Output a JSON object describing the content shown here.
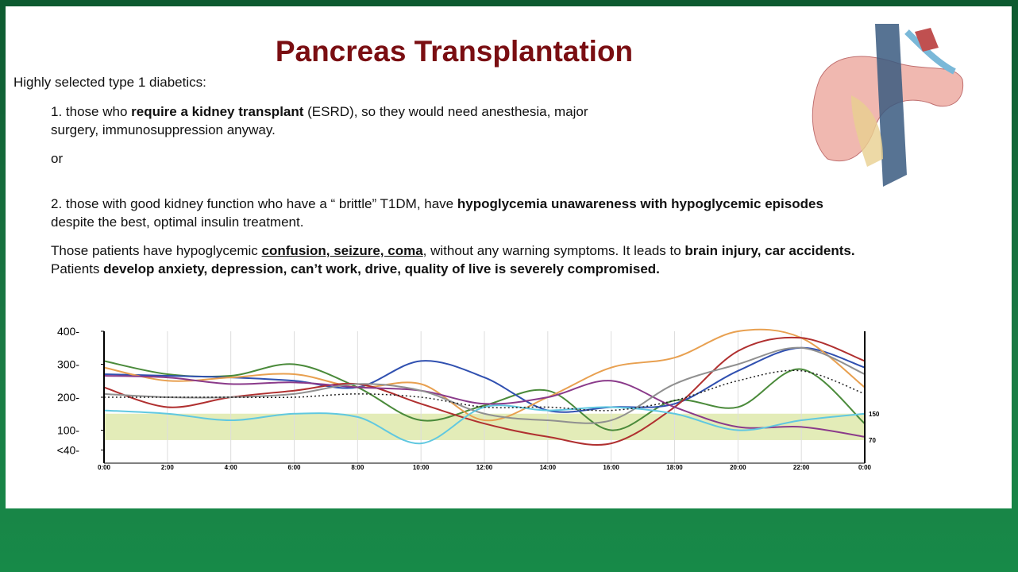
{
  "header": {
    "title": "Pancreas Transplantation"
  },
  "body": {
    "intro": "Highly selected type 1 diabetics:",
    "item1": [
      {
        "text": "1.  those who "
      },
      {
        "text": "require a kidney transplant",
        "style": "bold"
      },
      {
        "text": " (ESRD), so they would need anesthesia, major surgery, immunosuppression anyway."
      }
    ],
    "or": "or",
    "item2": [
      {
        "text": "2.  those with good kidney function who have a “ brittle” T1DM, have "
      },
      {
        "text": "hypoglycemia unawareness with hypoglycemic episodes",
        "style": "bold"
      },
      {
        "text": " despite the best, optimal insulin treatment."
      }
    ],
    "paragraph": [
      {
        "text": "Those patients have hypoglycemic "
      },
      {
        "text": "confusion, seizure, coma",
        "style": "bold-underline"
      },
      {
        "text": ", without any warning symptoms. It leads to "
      },
      {
        "text": "brain injury, car accidents.",
        "style": "bold"
      },
      {
        "text": " Patients "
      },
      {
        "text": "develop anxiety, depression, can’t work, drive, quality of live is severely compromised.",
        "style": "bold"
      }
    ]
  },
  "chart_data": {
    "type": "line",
    "categories": [
      "0:00",
      "2:00",
      "4:00",
      "6:00",
      "8:00",
      "10:00",
      "12:00",
      "14:00",
      "16:00",
      "18:00",
      "20:00",
      "22:00",
      "0:00"
    ],
    "ylim": [
      0,
      400
    ],
    "yticks": [
      {
        "value": 400,
        "label": "400-"
      },
      {
        "value": 300,
        "label": "300-"
      },
      {
        "value": 200,
        "label": "200-"
      },
      {
        "value": 100,
        "label": "100-"
      },
      {
        "value": 40,
        "label": "<40-"
      }
    ],
    "target_range": [
      70,
      150
    ],
    "band_color": "#e3ecb8",
    "grid": true,
    "series": [
      {
        "color": "#4a8a3a",
        "values": [
          310,
          270,
          265,
          300,
          230,
          130,
          175,
          220,
          100,
          190,
          170,
          285,
          120
        ]
      },
      {
        "color": "#3050b0",
        "values": [
          270,
          265,
          260,
          250,
          230,
          310,
          260,
          160,
          170,
          180,
          280,
          350,
          290
        ]
      },
      {
        "color": "#e8a050",
        "values": [
          290,
          250,
          260,
          270,
          230,
          240,
          130,
          200,
          290,
          320,
          400,
          380,
          230
        ]
      },
      {
        "color": "#b03030",
        "values": [
          230,
          170,
          200,
          220,
          240,
          180,
          120,
          80,
          60,
          170,
          340,
          380,
          310
        ]
      },
      {
        "color": "#8a3a8a",
        "values": [
          265,
          260,
          240,
          245,
          230,
          220,
          180,
          200,
          250,
          170,
          110,
          110,
          80
        ]
      },
      {
        "color": "#909090",
        "values": [
          210,
          200,
          200,
          210,
          240,
          220,
          150,
          130,
          130,
          240,
          300,
          350,
          270
        ]
      },
      {
        "color": "#60c8e0",
        "values": [
          160,
          150,
          130,
          150,
          140,
          60,
          170,
          160,
          170,
          150,
          100,
          130,
          150
        ]
      },
      {
        "color": "#222222",
        "dashed": true,
        "values": [
          200,
          200,
          200,
          200,
          210,
          200,
          170,
          170,
          160,
          190,
          250,
          280,
          210
        ]
      }
    ]
  }
}
